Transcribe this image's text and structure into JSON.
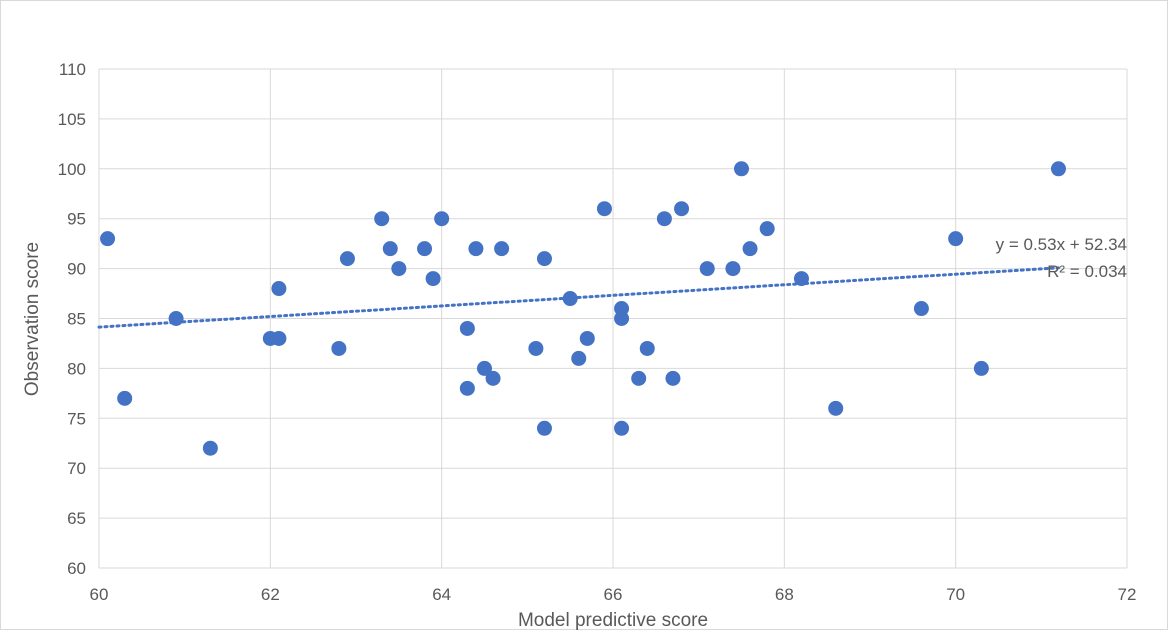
{
  "chart_data": {
    "type": "scatter",
    "title": "",
    "xlabel": "Model predictive score",
    "ylabel": "Observation score",
    "xlim": [
      60,
      72
    ],
    "ylim": [
      60,
      110
    ],
    "x_ticks": [
      "60",
      "62",
      "64",
      "66",
      "68",
      "70",
      "72"
    ],
    "y_ticks": [
      "60",
      "65",
      "70",
      "75",
      "80",
      "85",
      "90",
      "95",
      "100",
      "105",
      "110"
    ],
    "grid": true,
    "legend": "none",
    "marker_color": "#4472c4",
    "gridline_color": "#d9d9d9",
    "text_color": "#595959",
    "series": [
      {
        "x": [
          60.1,
          60.3,
          60.9,
          61.3,
          62.0,
          62.1,
          62.1,
          62.8,
          62.9,
          63.3,
          63.4,
          63.5,
          63.8,
          63.9,
          64.0,
          64.3,
          64.3,
          64.4,
          64.5,
          64.6,
          64.7,
          65.1,
          65.2,
          65.2,
          65.5,
          65.6,
          65.7,
          65.9,
          66.1,
          66.1,
          66.1,
          66.3,
          66.4,
          66.6,
          66.7,
          66.8,
          67.1,
          67.4,
          67.5,
          67.6,
          67.8,
          68.2,
          68.6,
          69.6,
          70.0,
          70.3,
          71.2
        ],
        "y": [
          93,
          77,
          85,
          72,
          83,
          88,
          83,
          82,
          91,
          95,
          92,
          90,
          92,
          89,
          95,
          84,
          78,
          92,
          80,
          79,
          92,
          82,
          91,
          74,
          87,
          81,
          83,
          96,
          86,
          85,
          74,
          79,
          82,
          95,
          79,
          96,
          90,
          90,
          100,
          92,
          94,
          89,
          76,
          86,
          93,
          80,
          100
        ]
      }
    ],
    "trendline": {
      "type": "linear",
      "slope": 0.53,
      "intercept": 52.34,
      "x_range": [
        60.0,
        71.2
      ],
      "color": "#4472c4",
      "style": "dotted",
      "equation_label": "y = 0.53x + 52.34",
      "r2_label": "R² = 0.034"
    }
  }
}
